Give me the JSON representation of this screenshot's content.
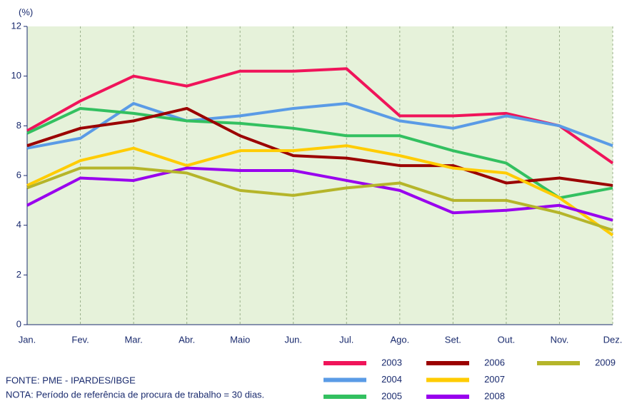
{
  "chart_data": {
    "type": "line",
    "y_label": "(%)",
    "categories": [
      "Jan.",
      "Fev.",
      "Mar.",
      "Abr.",
      "Maio",
      "Jun.",
      "Jul.",
      "Ago.",
      "Set.",
      "Out.",
      "Nov.",
      "Dez."
    ],
    "ylim": [
      0,
      12
    ],
    "yticks": [
      0,
      2,
      4,
      6,
      8,
      10,
      12
    ],
    "grid": true,
    "legend": "bottom-right",
    "series": [
      {
        "name": "2003",
        "color": "#f0145a",
        "values": [
          7.8,
          9.0,
          10.0,
          9.6,
          10.2,
          10.2,
          10.3,
          8.4,
          8.4,
          8.5,
          8.0,
          6.5
        ]
      },
      {
        "name": "2004",
        "color": "#5a9be6",
        "values": [
          7.1,
          7.5,
          8.9,
          8.2,
          8.4,
          8.7,
          8.9,
          8.2,
          7.9,
          8.4,
          8.0,
          7.2
        ]
      },
      {
        "name": "2005",
        "color": "#33c060",
        "values": [
          7.7,
          8.7,
          8.5,
          8.2,
          8.1,
          7.9,
          7.6,
          7.6,
          7.0,
          6.5,
          5.1,
          5.5
        ]
      },
      {
        "name": "2006",
        "color": "#9b0000",
        "values": [
          7.2,
          7.9,
          8.2,
          8.7,
          7.6,
          6.8,
          6.7,
          6.4,
          6.4,
          5.7,
          5.9,
          5.6
        ]
      },
      {
        "name": "2007",
        "color": "#ffcc00",
        "values": [
          5.6,
          6.6,
          7.1,
          6.4,
          7.0,
          7.0,
          7.2,
          6.8,
          6.3,
          6.1,
          5.1,
          3.6
        ]
      },
      {
        "name": "2008",
        "color": "#9900ee",
        "values": [
          4.8,
          5.9,
          5.8,
          6.3,
          6.2,
          6.2,
          5.8,
          5.4,
          4.5,
          4.6,
          4.8,
          4.2
        ]
      },
      {
        "name": "2009",
        "color": "#b5b52a",
        "values": [
          5.5,
          6.3,
          6.3,
          6.1,
          5.4,
          5.2,
          5.5,
          5.7,
          5.0,
          5.0,
          4.5,
          3.8
        ]
      }
    ],
    "source": "FONTE: PME - IPARDES/IBGE",
    "note": "NOTA: Período de referência de procura de trabalho = 30 dias."
  }
}
